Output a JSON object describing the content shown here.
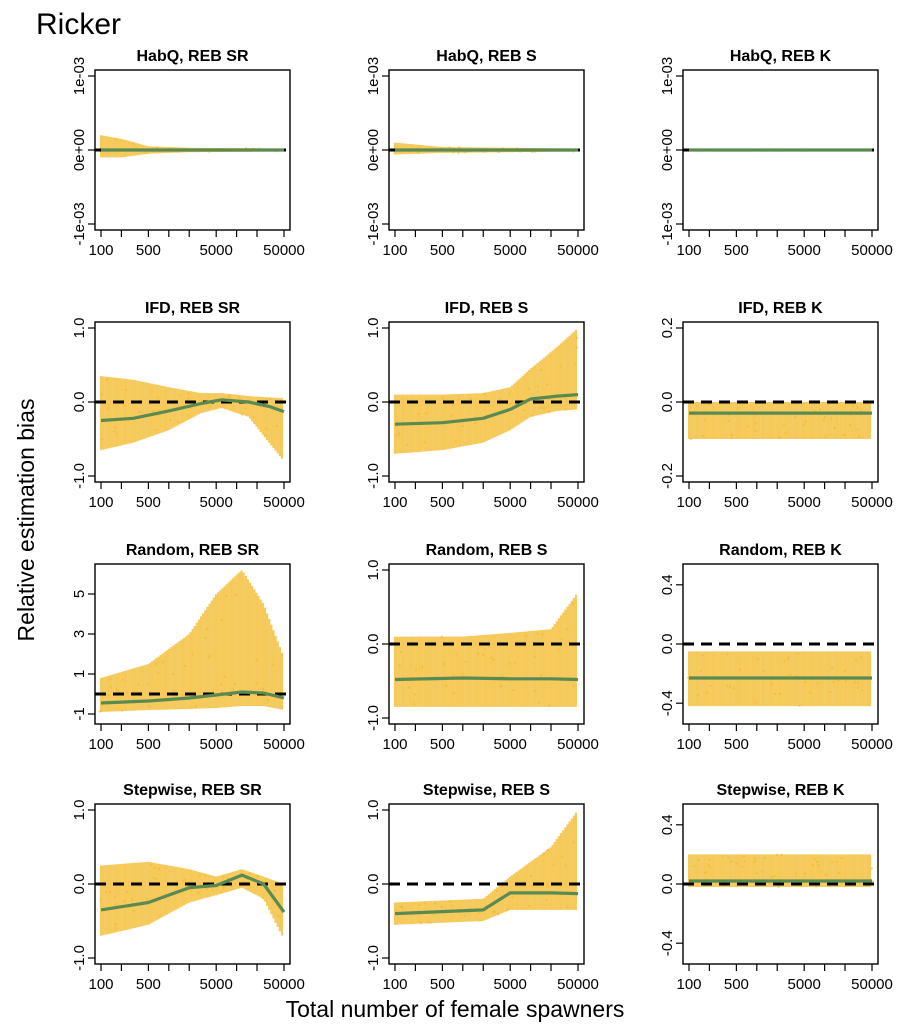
{
  "figure": {
    "title": "Ricker",
    "xlabel": "Total number of female spawners",
    "ylabel": "Relative estimation bias",
    "colors": {
      "points": "#F2B824",
      "fit": "#5A8A52",
      "reference": "#000000"
    }
  },
  "chart_data": [
    {
      "type": "scatter",
      "title": "HabQ, REB SR",
      "x_scale": "log",
      "xlim": [
        100,
        50000
      ],
      "x_ticks": [
        100,
        500,
        5000,
        50000
      ],
      "x_tick_labels": [
        "100",
        "500",
        "5000",
        "50000"
      ],
      "ylim": [
        -0.001,
        0.001
      ],
      "y_ticks": [
        -0.001,
        0,
        0.001
      ],
      "y_tick_labels": [
        "-1e-03",
        "0e+00",
        "1e-03"
      ],
      "reference_line_y": 0,
      "bands": [
        [
          100,
          0,
          0.0002,
          -0.0001
        ],
        [
          200,
          0,
          0.00015,
          -0.0001
        ],
        [
          500,
          0,
          5e-05,
          -5e-05
        ],
        [
          2000,
          0,
          3e-05,
          -3e-05
        ],
        [
          50000,
          0,
          2e-05,
          -2e-05
        ]
      ],
      "fit": {
        "x": [
          100,
          500,
          5000,
          50000
        ],
        "y": [
          0,
          0,
          0,
          0
        ]
      }
    },
    {
      "type": "scatter",
      "title": "HabQ, REB S",
      "x_scale": "log",
      "xlim": [
        100,
        50000
      ],
      "x_ticks": [
        100,
        500,
        5000,
        50000
      ],
      "x_tick_labels": [
        "100",
        "500",
        "5000",
        "50000"
      ],
      "ylim": [
        -0.001,
        0.001
      ],
      "y_ticks": [
        -0.001,
        0,
        0.001
      ],
      "y_tick_labels": [
        "-1e-03",
        "0e+00",
        "1e-03"
      ],
      "reference_line_y": 0,
      "bands": [
        [
          100,
          0,
          0.0001,
          -6e-05
        ],
        [
          500,
          0,
          4e-05,
          -4e-05
        ],
        [
          50000,
          0,
          2e-05,
          -2e-05
        ]
      ],
      "fit": {
        "x": [
          100,
          500,
          5000,
          50000
        ],
        "y": [
          0,
          0,
          0,
          0
        ]
      }
    },
    {
      "type": "scatter",
      "title": "HabQ, REB K",
      "x_scale": "log",
      "xlim": [
        100,
        50000
      ],
      "x_ticks": [
        100,
        500,
        5000,
        50000
      ],
      "x_tick_labels": [
        "100",
        "500",
        "5000",
        "50000"
      ],
      "ylim": [
        -0.001,
        0.001
      ],
      "y_ticks": [
        -0.001,
        0,
        0.001
      ],
      "y_tick_labels": [
        "-1e-03",
        "0e+00",
        "1e-03"
      ],
      "reference_line_y": 0,
      "bands": [
        [
          100,
          0,
          1e-05,
          -1e-05
        ],
        [
          50000,
          0,
          1e-05,
          -1e-05
        ]
      ],
      "fit": {
        "x": [
          100,
          500,
          5000,
          50000
        ],
        "y": [
          0,
          0,
          0,
          0
        ]
      }
    },
    {
      "type": "scatter",
      "title": "IFD, REB SR",
      "x_scale": "log",
      "xlim": [
        100,
        50000
      ],
      "x_ticks": [
        100,
        500,
        5000,
        50000
      ],
      "x_tick_labels": [
        "100",
        "500",
        "5000",
        "50000"
      ],
      "ylim": [
        -1.0,
        1.0
      ],
      "y_ticks": [
        -1.0,
        0,
        1.0
      ],
      "y_tick_labels": [
        "-1.0",
        "0.0",
        "1.0"
      ],
      "reference_line_y": 0,
      "bands": [
        [
          100,
          -0.25,
          0.35,
          -0.65
        ],
        [
          300,
          -0.22,
          0.3,
          -0.55
        ],
        [
          1000,
          -0.12,
          0.2,
          -0.38
        ],
        [
          3000,
          -0.02,
          0.12,
          -0.15
        ],
        [
          6000,
          0.03,
          0.12,
          -0.08
        ],
        [
          15000,
          -0.03,
          0.08,
          -0.2
        ],
        [
          50000,
          -0.25,
          0.05,
          -0.8
        ]
      ],
      "fit": {
        "x": [
          100,
          300,
          1000,
          3000,
          6000,
          15000,
          30000,
          50000
        ],
        "y": [
          -0.25,
          -0.22,
          -0.12,
          -0.02,
          0.03,
          0.0,
          -0.06,
          -0.13
        ]
      }
    },
    {
      "type": "scatter",
      "title": "IFD, REB S",
      "x_scale": "log",
      "xlim": [
        100,
        50000
      ],
      "x_ticks": [
        100,
        500,
        5000,
        50000
      ],
      "x_tick_labels": [
        "100",
        "500",
        "5000",
        "50000"
      ],
      "ylim": [
        -1.0,
        1.0
      ],
      "y_ticks": [
        -1.0,
        0,
        1.0
      ],
      "y_tick_labels": [
        "-1.0",
        "0.0",
        "1.0"
      ],
      "reference_line_y": 0,
      "bands": [
        [
          100,
          -0.3,
          0.1,
          -0.7
        ],
        [
          500,
          -0.28,
          0.1,
          -0.65
        ],
        [
          2000,
          -0.22,
          0.12,
          -0.55
        ],
        [
          5000,
          -0.1,
          0.2,
          -0.38
        ],
        [
          10000,
          0.04,
          0.45,
          -0.2
        ],
        [
          25000,
          0.08,
          0.75,
          -0.12
        ],
        [
          50000,
          0.1,
          1.0,
          -0.1
        ]
      ],
      "fit": {
        "x": [
          100,
          500,
          2000,
          5000,
          10000,
          25000,
          50000
        ],
        "y": [
          -0.3,
          -0.28,
          -0.22,
          -0.1,
          0.04,
          0.08,
          0.1
        ]
      }
    },
    {
      "type": "scatter",
      "title": "IFD, REB K",
      "x_scale": "log",
      "xlim": [
        100,
        50000
      ],
      "x_ticks": [
        100,
        500,
        5000,
        50000
      ],
      "x_tick_labels": [
        "100",
        "500",
        "5000",
        "50000"
      ],
      "ylim": [
        -0.2,
        0.2
      ],
      "y_ticks": [
        -0.2,
        0,
        0.2
      ],
      "y_tick_labels": [
        "-0.2",
        "0.0",
        "0.2"
      ],
      "reference_line_y": 0,
      "bands": [
        [
          100,
          -0.03,
          0.0,
          -0.1
        ],
        [
          50000,
          -0.03,
          0.0,
          -0.1
        ]
      ],
      "fit": {
        "x": [
          100,
          50000
        ],
        "y": [
          -0.03,
          -0.03
        ]
      }
    },
    {
      "type": "scatter",
      "title": "Random, REB SR",
      "x_scale": "log",
      "xlim": [
        100,
        50000
      ],
      "x_ticks": [
        100,
        500,
        5000,
        50000
      ],
      "x_tick_labels": [
        "100",
        "500",
        "5000",
        "50000"
      ],
      "ylim": [
        -1.2,
        6.2
      ],
      "y_ticks": [
        -1,
        1,
        3,
        5
      ],
      "y_tick_labels": [
        "-1",
        "1",
        "3",
        "5"
      ],
      "reference_line_y": 0,
      "bands": [
        [
          100,
          -0.45,
          0.8,
          -0.9
        ],
        [
          500,
          -0.35,
          1.5,
          -0.8
        ],
        [
          2000,
          -0.2,
          3.0,
          -0.75
        ],
        [
          5000,
          -0.05,
          5.0,
          -0.7
        ],
        [
          12000,
          0.1,
          6.2,
          -0.6
        ],
        [
          25000,
          0.05,
          4.5,
          -0.6
        ],
        [
          50000,
          -0.2,
          1.8,
          -0.8
        ]
      ],
      "fit": {
        "x": [
          100,
          500,
          2000,
          5000,
          12000,
          25000,
          50000
        ],
        "y": [
          -0.45,
          -0.35,
          -0.2,
          -0.05,
          0.1,
          0.05,
          -0.2
        ]
      }
    },
    {
      "type": "scatter",
      "title": "Random, REB S",
      "x_scale": "log",
      "xlim": [
        100,
        50000
      ],
      "x_ticks": [
        100,
        500,
        5000,
        50000
      ],
      "x_tick_labels": [
        "100",
        "500",
        "5000",
        "50000"
      ],
      "ylim": [
        -1.0,
        1.0
      ],
      "y_ticks": [
        -1.0,
        0,
        1.0
      ],
      "y_tick_labels": [
        "-1.0",
        "0.0",
        "1.0"
      ],
      "reference_line_y": 0,
      "bands": [
        [
          100,
          -0.48,
          0.1,
          -0.85
        ],
        [
          1000,
          -0.46,
          0.1,
          -0.85
        ],
        [
          5000,
          -0.47,
          0.15,
          -0.85
        ],
        [
          20000,
          -0.47,
          0.2,
          -0.85
        ],
        [
          50000,
          -0.48,
          0.7,
          -0.85
        ]
      ],
      "fit": {
        "x": [
          100,
          1000,
          5000,
          20000,
          50000
        ],
        "y": [
          -0.48,
          -0.46,
          -0.47,
          -0.47,
          -0.48
        ]
      }
    },
    {
      "type": "scatter",
      "title": "Random, REB K",
      "x_scale": "log",
      "xlim": [
        100,
        50000
      ],
      "x_ticks": [
        100,
        500,
        5000,
        50000
      ],
      "x_tick_labels": [
        "100",
        "500",
        "5000",
        "50000"
      ],
      "ylim": [
        -0.5,
        0.5
      ],
      "y_ticks": [
        -0.4,
        0,
        0.4
      ],
      "y_tick_labels": [
        "-0.4",
        "0.0",
        "0.4"
      ],
      "reference_line_y": 0,
      "bands": [
        [
          100,
          -0.23,
          -0.05,
          -0.42
        ],
        [
          50000,
          -0.23,
          -0.05,
          -0.42
        ]
      ],
      "fit": {
        "x": [
          100,
          50000
        ],
        "y": [
          -0.23,
          -0.23
        ]
      }
    },
    {
      "type": "scatter",
      "title": "Stepwise, REB SR",
      "x_scale": "log",
      "xlim": [
        100,
        50000
      ],
      "x_ticks": [
        100,
        500,
        5000,
        50000
      ],
      "x_tick_labels": [
        "100",
        "500",
        "5000",
        "50000"
      ],
      "ylim": [
        -1.0,
        1.0
      ],
      "y_ticks": [
        -1.0,
        0,
        1.0
      ],
      "y_tick_labels": [
        "-1.0",
        "0.0",
        "1.0"
      ],
      "reference_line_y": 0,
      "bands": [
        [
          100,
          -0.35,
          0.25,
          -0.7
        ],
        [
          500,
          -0.25,
          0.3,
          -0.55
        ],
        [
          2000,
          -0.05,
          0.2,
          -0.25
        ],
        [
          5000,
          -0.02,
          0.1,
          -0.15
        ],
        [
          12000,
          0.12,
          0.2,
          -0.05
        ],
        [
          25000,
          0.0,
          0.1,
          -0.2
        ],
        [
          50000,
          -0.38,
          0.0,
          -0.75
        ]
      ],
      "fit": {
        "x": [
          100,
          500,
          2000,
          5000,
          12000,
          25000,
          50000
        ],
        "y": [
          -0.35,
          -0.25,
          -0.05,
          -0.02,
          0.12,
          0.0,
          -0.38
        ]
      }
    },
    {
      "type": "scatter",
      "title": "Stepwise, REB S",
      "x_scale": "log",
      "xlim": [
        100,
        50000
      ],
      "x_ticks": [
        100,
        500,
        5000,
        50000
      ],
      "x_tick_labels": [
        "100",
        "500",
        "5000",
        "50000"
      ],
      "ylim": [
        -1.0,
        1.0
      ],
      "y_ticks": [
        -1.0,
        0,
        1.0
      ],
      "y_tick_labels": [
        "-1.0",
        "0.0",
        "1.0"
      ],
      "reference_line_y": 0,
      "bands": [
        [
          100,
          -0.4,
          -0.25,
          -0.55
        ],
        [
          2000,
          -0.35,
          -0.2,
          -0.5
        ],
        [
          5000,
          -0.12,
          0.1,
          -0.35
        ],
        [
          20000,
          -0.12,
          0.5,
          -0.35
        ],
        [
          50000,
          -0.13,
          1.0,
          -0.35
        ]
      ],
      "fit": {
        "x": [
          100,
          2000,
          5000,
          20000,
          50000
        ],
        "y": [
          -0.4,
          -0.35,
          -0.12,
          -0.12,
          -0.13
        ]
      }
    },
    {
      "type": "scatter",
      "title": "Stepwise, REB K",
      "x_scale": "log",
      "xlim": [
        100,
        50000
      ],
      "x_ticks": [
        100,
        500,
        5000,
        50000
      ],
      "x_tick_labels": [
        "100",
        "500",
        "5000",
        "50000"
      ],
      "ylim": [
        -0.5,
        0.5
      ],
      "y_ticks": [
        -0.4,
        0,
        0.4
      ],
      "y_tick_labels": [
        "-0.4",
        "0.0",
        "0.4"
      ],
      "reference_line_y": 0,
      "bands": [
        [
          100,
          0.02,
          0.2,
          -0.02
        ],
        [
          50000,
          0.02,
          0.2,
          -0.02
        ]
      ],
      "fit": {
        "x": [
          100,
          50000
        ],
        "y": [
          0.02,
          0.02
        ]
      }
    }
  ]
}
